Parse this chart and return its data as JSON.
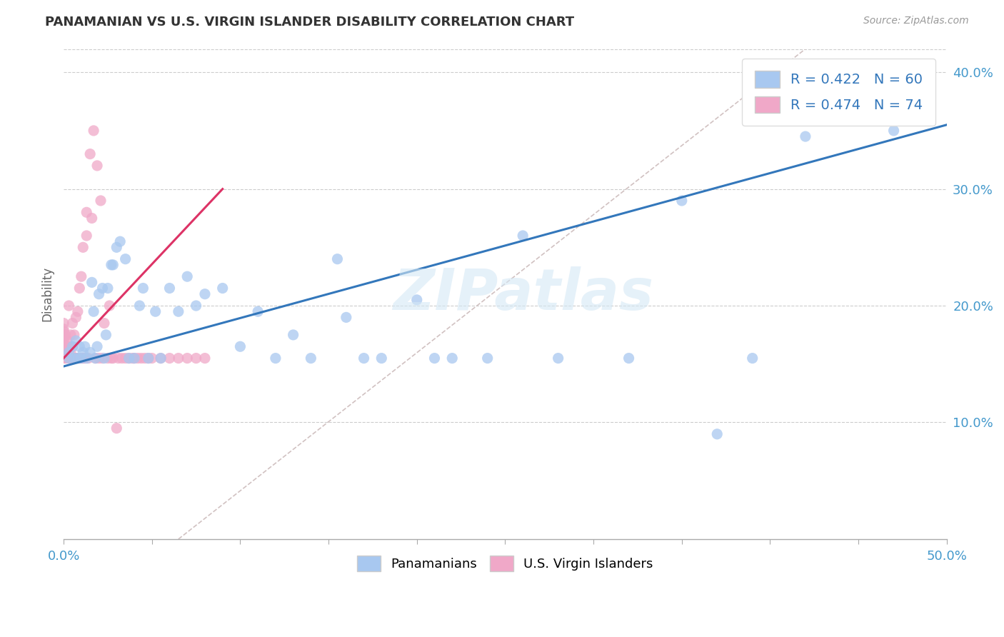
{
  "title": "PANAMANIAN VS U.S. VIRGIN ISLANDER DISABILITY CORRELATION CHART",
  "source": "Source: ZipAtlas.com",
  "ylabel": "Disability",
  "xlim": [
    0.0,
    0.5
  ],
  "ylim": [
    0.0,
    0.42
  ],
  "blue_R": 0.422,
  "blue_N": 60,
  "pink_R": 0.474,
  "pink_N": 74,
  "blue_color": "#a8c8f0",
  "pink_color": "#f0a8c8",
  "blue_line_color": "#3377bb",
  "pink_line_color": "#dd3366",
  "ref_line_color": "#ccbbbb",
  "watermark": "ZIPatlas",
  "blue_scatter_x": [
    0.003,
    0.003,
    0.005,
    0.006,
    0.007,
    0.008,
    0.009,
    0.01,
    0.011,
    0.012,
    0.013,
    0.015,
    0.016,
    0.017,
    0.018,
    0.019,
    0.02,
    0.022,
    0.023,
    0.024,
    0.025,
    0.027,
    0.028,
    0.03,
    0.032,
    0.035,
    0.037,
    0.04,
    0.043,
    0.045,
    0.048,
    0.052,
    0.055,
    0.06,
    0.065,
    0.07,
    0.075,
    0.08,
    0.09,
    0.1,
    0.11,
    0.12,
    0.13,
    0.14,
    0.155,
    0.16,
    0.17,
    0.18,
    0.2,
    0.21,
    0.22,
    0.24,
    0.26,
    0.28,
    0.32,
    0.35,
    0.37,
    0.39,
    0.42,
    0.47
  ],
  "blue_scatter_y": [
    0.155,
    0.16,
    0.165,
    0.155,
    0.17,
    0.155,
    0.165,
    0.155,
    0.16,
    0.165,
    0.155,
    0.16,
    0.22,
    0.195,
    0.155,
    0.165,
    0.21,
    0.215,
    0.155,
    0.175,
    0.215,
    0.235,
    0.235,
    0.25,
    0.255,
    0.24,
    0.155,
    0.155,
    0.2,
    0.215,
    0.155,
    0.195,
    0.155,
    0.215,
    0.195,
    0.225,
    0.2,
    0.21,
    0.215,
    0.165,
    0.195,
    0.155,
    0.175,
    0.155,
    0.24,
    0.19,
    0.155,
    0.155,
    0.205,
    0.155,
    0.155,
    0.155,
    0.26,
    0.155,
    0.155,
    0.29,
    0.09,
    0.155,
    0.345,
    0.35
  ],
  "pink_scatter_x": [
    0.0,
    0.0,
    0.0,
    0.0,
    0.0,
    0.0,
    0.0,
    0.0,
    0.0,
    0.0,
    0.0,
    0.0,
    0.001,
    0.001,
    0.001,
    0.001,
    0.002,
    0.002,
    0.002,
    0.003,
    0.003,
    0.003,
    0.004,
    0.004,
    0.005,
    0.005,
    0.005,
    0.006,
    0.006,
    0.007,
    0.007,
    0.008,
    0.008,
    0.009,
    0.009,
    0.01,
    0.01,
    0.011,
    0.011,
    0.012,
    0.013,
    0.013,
    0.014,
    0.015,
    0.016,
    0.017,
    0.018,
    0.019,
    0.02,
    0.021,
    0.022,
    0.023,
    0.025,
    0.026,
    0.027,
    0.028,
    0.03,
    0.031,
    0.033,
    0.035,
    0.037,
    0.039,
    0.04,
    0.042,
    0.044,
    0.046,
    0.048,
    0.05,
    0.055,
    0.06,
    0.065,
    0.07,
    0.075,
    0.08
  ],
  "pink_scatter_y": [
    0.155,
    0.158,
    0.16,
    0.162,
    0.165,
    0.168,
    0.17,
    0.172,
    0.175,
    0.178,
    0.18,
    0.185,
    0.155,
    0.16,
    0.165,
    0.175,
    0.155,
    0.162,
    0.17,
    0.155,
    0.165,
    0.2,
    0.16,
    0.175,
    0.155,
    0.165,
    0.185,
    0.155,
    0.175,
    0.155,
    0.19,
    0.155,
    0.195,
    0.155,
    0.215,
    0.155,
    0.225,
    0.155,
    0.25,
    0.155,
    0.26,
    0.28,
    0.155,
    0.33,
    0.275,
    0.35,
    0.155,
    0.32,
    0.155,
    0.29,
    0.155,
    0.185,
    0.155,
    0.2,
    0.155,
    0.155,
    0.095,
    0.155,
    0.155,
    0.155,
    0.155,
    0.155,
    0.155,
    0.155,
    0.155,
    0.155,
    0.155,
    0.155,
    0.155,
    0.155,
    0.155,
    0.155,
    0.155,
    0.155
  ],
  "blue_line_x0": 0.0,
  "blue_line_y0": 0.148,
  "blue_line_x1": 0.5,
  "blue_line_y1": 0.355,
  "pink_line_x0": 0.0,
  "pink_line_y0": 0.155,
  "pink_line_x1": 0.09,
  "pink_line_y1": 0.3,
  "ref_line_x0": 0.065,
  "ref_line_y0": 0.0,
  "ref_line_x1": 0.42,
  "ref_line_y1": 0.42
}
